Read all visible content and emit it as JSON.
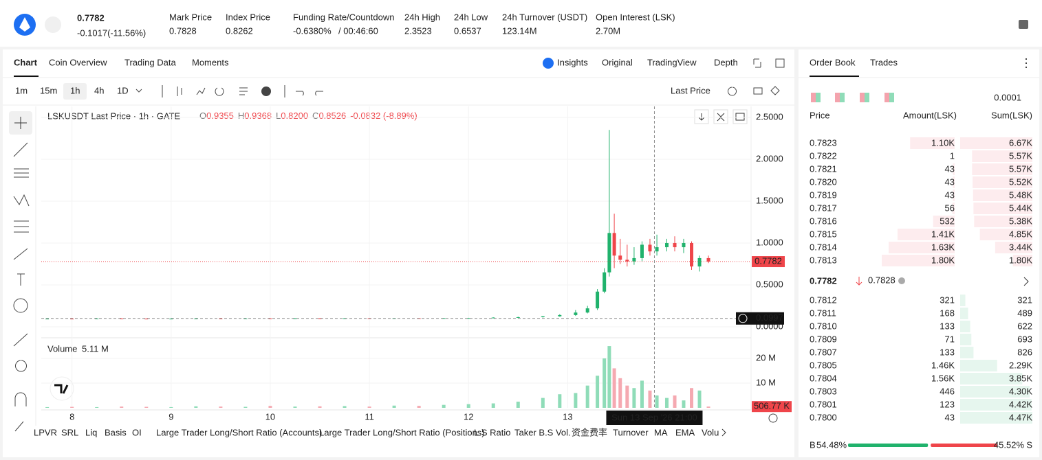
{
  "header": {
    "price": "0.7782",
    "change": "-0.1017(-11.56%)",
    "stats": [
      {
        "label": "Mark Price",
        "value": "0.7828"
      },
      {
        "label": "Index Price",
        "value": "0.8262"
      },
      {
        "label": "Funding Rate/Countdown",
        "value": "-0.6380%",
        "countdown": "/ 00:46:60"
      },
      {
        "label": "24h High",
        "value": "2.3523"
      },
      {
        "label": "24h Low",
        "value": "0.6537"
      },
      {
        "label": "24h Turnover (USDT)",
        "value": "123.14M"
      },
      {
        "label": "Open Interest (LSK)",
        "value": "2.70M"
      }
    ]
  },
  "tabs": [
    "Chart",
    "Coin Overview",
    "Trading Data",
    "Moments"
  ],
  "views": [
    "Insights",
    "Original",
    "TradingView",
    "Depth"
  ],
  "intervals": [
    "1m",
    "15m",
    "1h",
    "4h",
    "1D"
  ],
  "price_type": "Last Price",
  "legend": {
    "symbol": "LSKUSDT Last Price · 1h · GATE",
    "ohlc": [
      {
        "k": "O",
        "v": "0.9355"
      },
      {
        "k": "H",
        "v": "0.9368"
      },
      {
        "k": "L",
        "v": "0.8200"
      },
      {
        "k": "C",
        "v": "0.8526"
      }
    ],
    "change": "-0.0832 (-8.89%)"
  },
  "volume_legend": {
    "label": "Volume",
    "value": "5.11 M"
  },
  "chart_data": {
    "type": "candlestick",
    "grid": true,
    "up_color": "#20b26c",
    "down_color": "#ef454a",
    "volume_up_color": "#8fdcb8",
    "volume_down_color": "#f5a9b1",
    "x": [
      7.75,
      8,
      8.25,
      8.5,
      8.75,
      9,
      9.25,
      9.5,
      9.75,
      10,
      10.25,
      10.5,
      10.75,
      11,
      11.25,
      11.5,
      11.75,
      12,
      12.25,
      12.5,
      12.75,
      12.92,
      13.08,
      13.2,
      13.3,
      13.37,
      13.42,
      13.47,
      13.53,
      13.6,
      13.67,
      13.75,
      13.83,
      13.9,
      14,
      14.08,
      14.17,
      14.25,
      14.33,
      14.42
    ],
    "open": [
      0.095,
      0.097,
      0.096,
      0.098,
      0.097,
      0.096,
      0.097,
      0.098,
      0.097,
      0.099,
      0.098,
      0.1,
      0.099,
      0.101,
      0.1,
      0.102,
      0.101,
      0.103,
      0.104,
      0.11,
      0.115,
      0.125,
      0.14,
      0.17,
      0.22,
      0.42,
      0.65,
      1.12,
      0.85,
      0.8,
      0.78,
      0.82,
      0.98,
      0.9,
      0.95,
      1.0,
      0.95,
      1.0,
      0.72,
      0.82
    ],
    "high": [
      0.1,
      0.1,
      0.101,
      0.101,
      0.1,
      0.1,
      0.101,
      0.101,
      0.102,
      0.102,
      0.103,
      0.103,
      0.104,
      0.104,
      0.105,
      0.105,
      0.106,
      0.107,
      0.113,
      0.12,
      0.13,
      0.15,
      0.2,
      0.25,
      0.45,
      0.7,
      2.35,
      1.35,
      1.05,
      0.98,
      0.95,
      1.02,
      1.05,
      1.1,
      1.05,
      1.08,
      1.05,
      1.02,
      0.85,
      0.85
    ],
    "low": [
      0.092,
      0.093,
      0.093,
      0.094,
      0.093,
      0.093,
      0.094,
      0.094,
      0.094,
      0.095,
      0.095,
      0.096,
      0.096,
      0.097,
      0.097,
      0.098,
      0.098,
      0.1,
      0.101,
      0.105,
      0.11,
      0.12,
      0.13,
      0.16,
      0.2,
      0.4,
      0.6,
      0.7,
      0.75,
      0.72,
      0.74,
      0.78,
      0.85,
      0.85,
      0.9,
      0.9,
      0.88,
      0.68,
      0.66,
      0.76
    ],
    "close": [
      0.097,
      0.096,
      0.098,
      0.097,
      0.096,
      0.097,
      0.098,
      0.097,
      0.099,
      0.098,
      0.1,
      0.099,
      0.101,
      0.1,
      0.102,
      0.101,
      0.103,
      0.104,
      0.11,
      0.115,
      0.125,
      0.14,
      0.17,
      0.22,
      0.42,
      0.65,
      1.12,
      0.85,
      0.8,
      0.78,
      0.82,
      0.98,
      0.9,
      0.95,
      1.0,
      0.95,
      1.0,
      0.72,
      0.82,
      0.7782
    ],
    "volume": [
      0.3,
      0.4,
      0.3,
      0.5,
      0.4,
      0.3,
      0.6,
      0.5,
      0.4,
      0.8,
      0.5,
      0.6,
      0.7,
      0.5,
      0.9,
      0.8,
      1.2,
      1.5,
      1.8,
      2.5,
      4.0,
      5.5,
      6.0,
      9.0,
      13,
      20,
      25,
      16,
      12,
      9,
      8,
      11,
      7,
      5,
      4,
      5,
      3,
      8,
      7,
      0.50677
    ],
    "xlim": [
      7.69,
      14.85
    ],
    "xticks": [
      8,
      9,
      10,
      11,
      12,
      13
    ],
    "ylim": [
      -0.115,
      2.631
    ],
    "yticks": [
      {
        "value": 0,
        "label": "0.0000"
      },
      {
        "value": 0.5,
        "label": "0.5000"
      },
      {
        "value": 1,
        "label": "1.0000"
      },
      {
        "value": 1.5,
        "label": "1.5000"
      },
      {
        "value": 2,
        "label": "2.0000"
      },
      {
        "value": 2.5,
        "label": "2.5000"
      }
    ],
    "volume_ylim": [
      0,
      27.8
    ],
    "volume_yticks": [
      {
        "value": 10,
        "label": "10 M"
      },
      {
        "value": 20,
        "label": "20 M"
      }
    ],
    "last_price": 0.7782,
    "last_volume_label": "506.77 K",
    "crosshair": {
      "x": 13.875,
      "y": 0.0997,
      "x_label": "Sun 13 Sep '26   21:00"
    }
  },
  "indicators": [
    "LPVR",
    "SRL",
    "Liq",
    "Basis",
    "OI",
    "Large Trader Long/Short Ratio (Accounts)",
    "Large Trader Long/Short Ratio (Positions)",
    "L.S Ratio",
    "Taker B.S Vol.",
    "资金费率",
    "Turnover",
    "MA",
    "EMA",
    "Volu"
  ],
  "order_book": {
    "tabs": [
      "Order Book",
      "Trades"
    ],
    "precision": "0.0001",
    "columns": [
      "Price",
      "Amount(LSK)",
      "Sum(LSK)"
    ],
    "asks": [
      {
        "price": "0.7823",
        "amount": "1.10K",
        "sum": "6.67K"
      },
      {
        "price": "0.7822",
        "amount": "1",
        "sum": "5.57K"
      },
      {
        "price": "0.7821",
        "amount": "43",
        "sum": "5.57K"
      },
      {
        "price": "0.7820",
        "amount": "43",
        "sum": "5.52K"
      },
      {
        "price": "0.7819",
        "amount": "43",
        "sum": "5.48K"
      },
      {
        "price": "0.7817",
        "amount": "56",
        "sum": "5.44K"
      },
      {
        "price": "0.7816",
        "amount": "532",
        "sum": "5.38K"
      },
      {
        "price": "0.7815",
        "amount": "1.41K",
        "sum": "4.85K"
      },
      {
        "price": "0.7814",
        "amount": "1.63K",
        "sum": "3.44K"
      },
      {
        "price": "0.7813",
        "amount": "1.80K",
        "sum": "1.80K"
      }
    ],
    "mid": {
      "price": "0.7782",
      "mark": "0.7828"
    },
    "bids": [
      {
        "price": "0.7812",
        "amount": "321",
        "sum": "321"
      },
      {
        "price": "0.7811",
        "amount": "168",
        "sum": "489"
      },
      {
        "price": "0.7810",
        "amount": "133",
        "sum": "622"
      },
      {
        "price": "0.7809",
        "amount": "71",
        "sum": "693"
      },
      {
        "price": "0.7807",
        "amount": "133",
        "sum": "826"
      },
      {
        "price": "0.7805",
        "amount": "1.46K",
        "sum": "2.29K"
      },
      {
        "price": "0.7804",
        "amount": "1.56K",
        "sum": "3.85K"
      },
      {
        "price": "0.7803",
        "amount": "446",
        "sum": "4.30K"
      },
      {
        "price": "0.7801",
        "amount": "123",
        "sum": "4.42K"
      },
      {
        "price": "0.7800",
        "amount": "43",
        "sum": "4.47K"
      }
    ],
    "ratio": {
      "buy_tag": "B",
      "buy": {
        "value": 54.48,
        "label": "54.48%"
      },
      "sell": {
        "value": 45.52,
        "label": "45.52%"
      },
      "sell_tag": "S"
    }
  }
}
